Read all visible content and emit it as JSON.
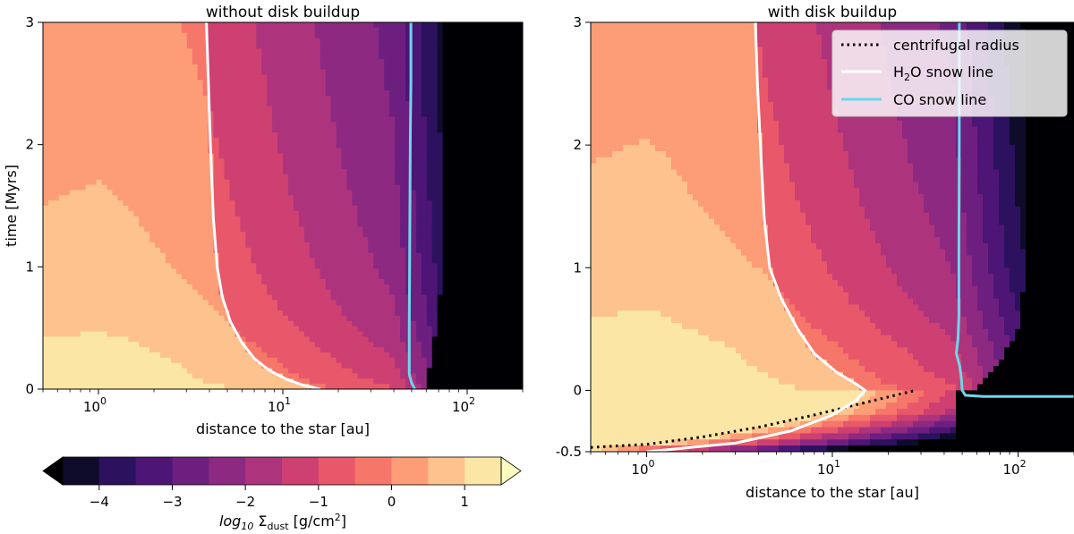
{
  "figure": {
    "colorbar": {
      "label_prefix": "log",
      "label_sub": "10",
      "label_symbol": " Σ",
      "label_sub2": "dust",
      "label_unit": " [g/cm",
      "label_sup": "2",
      "label_close": "]",
      "ticks": [
        {
          "value": -4,
          "label": "−4"
        },
        {
          "value": -3,
          "label": "−3"
        },
        {
          "value": -2,
          "label": "−2"
        },
        {
          "value": -1,
          "label": "−1"
        },
        {
          "value": 0,
          "label": "0"
        },
        {
          "value": 1,
          "label": "1"
        }
      ],
      "levels": [
        -4.5,
        -4,
        -3.5,
        -3,
        -2.5,
        -2,
        -1.5,
        -1,
        -0.5,
        0,
        0.5,
        1,
        1.5
      ],
      "colors": [
        "#000004",
        "#0f0c2b",
        "#2b115e",
        "#4d1575",
        "#6d1f80",
        "#8d2981",
        "#ad347c",
        "#cd4071",
        "#e8586a",
        "#f6766a",
        "#fc9d78",
        "#fdc28e",
        "#fce6a6",
        "#fcfdbf"
      ]
    },
    "legend": {
      "entries": [
        {
          "label": "centrifugal radius",
          "style": "dotted",
          "color": "#000000"
        },
        {
          "label_main": "H",
          "label_sub": "2",
          "label_rest": "O snow line",
          "style": "solid",
          "color": "#ffffff"
        },
        {
          "label": "CO snow line",
          "style": "solid",
          "color": "#6dd6ec"
        }
      ]
    }
  },
  "chart_data": [
    {
      "type": "contourf",
      "title": "without disk buildup",
      "xlabel": "distance to the star [au]",
      "ylabel": "time [Myrs]",
      "xscale": "log",
      "xlim": [
        0.5,
        200
      ],
      "ylim": [
        0,
        3
      ],
      "x_ticks": [
        {
          "value": 1,
          "base": "10",
          "exp": "0"
        },
        {
          "value": 10,
          "base": "10",
          "exp": "1"
        },
        {
          "value": 100,
          "base": "10",
          "exp": "2"
        }
      ],
      "y_ticks": [
        {
          "value": 0,
          "label": "0"
        },
        {
          "value": 1,
          "label": "1"
        },
        {
          "value": 2,
          "label": "2"
        },
        {
          "value": 3,
          "label": "3"
        }
      ],
      "series": [
        {
          "name": "H2O snow line",
          "color": "#ffffff",
          "points": [
            [
              16,
              0.0
            ],
            [
              13,
              0.03
            ],
            [
              10.5,
              0.08
            ],
            [
              8.5,
              0.15
            ],
            [
              7,
              0.25
            ],
            [
              6,
              0.38
            ],
            [
              5.2,
              0.55
            ],
            [
              4.7,
              0.75
            ],
            [
              4.4,
              1.0
            ],
            [
              4.2,
              1.4
            ],
            [
              4.05,
              2.0
            ],
            [
              3.95,
              2.5
            ],
            [
              3.85,
              3.0
            ]
          ]
        },
        {
          "name": "CO snow line",
          "color": "#6dd6ec",
          "points": [
            [
              52,
              0.0
            ],
            [
              50,
              0.05
            ],
            [
              48.5,
              0.12
            ],
            [
              48.5,
              0.5
            ],
            [
              48.8,
              1.2
            ],
            [
              49.2,
              2.1
            ],
            [
              49.5,
              2.5
            ],
            [
              49.5,
              3.0
            ]
          ]
        }
      ]
    },
    {
      "type": "contourf",
      "title": "with disk buildup",
      "xlabel": "distance to the star [au]",
      "ylabel": "",
      "xscale": "log",
      "xlim": [
        0.5,
        200
      ],
      "ylim": [
        -0.5,
        3
      ],
      "x_ticks": [
        {
          "value": 1,
          "base": "10",
          "exp": "0"
        },
        {
          "value": 10,
          "base": "10",
          "exp": "1"
        },
        {
          "value": 100,
          "base": "10",
          "exp": "2"
        }
      ],
      "y_ticks": [
        {
          "value": -0.5,
          "label": "-0.5"
        },
        {
          "value": 0,
          "label": "0"
        },
        {
          "value": 1,
          "label": "1"
        },
        {
          "value": 2,
          "label": "2"
        },
        {
          "value": 3,
          "label": "3"
        }
      ],
      "series": [
        {
          "name": "centrifugal radius",
          "color": "#000000",
          "style": "dotted",
          "points": [
            [
              0.5,
              -0.465
            ],
            [
              1.0,
              -0.44
            ],
            [
              2.0,
              -0.38
            ],
            [
              4.0,
              -0.3
            ],
            [
              8.0,
              -0.2
            ],
            [
              15.0,
              -0.1
            ],
            [
              28.0,
              0.0
            ]
          ]
        },
        {
          "name": "H2O snow line",
          "color": "#ffffff",
          "points": [
            [
              1.0,
              -0.5
            ],
            [
              3.0,
              -0.43
            ],
            [
              6.0,
              -0.33
            ],
            [
              10.0,
              -0.2
            ],
            [
              13.5,
              -0.08
            ],
            [
              15.0,
              0.0
            ],
            [
              13.5,
              0.05
            ],
            [
              10.5,
              0.15
            ],
            [
              8.0,
              0.3
            ],
            [
              6.5,
              0.5
            ],
            [
              5.3,
              0.75
            ],
            [
              4.6,
              1.0
            ],
            [
              4.3,
              1.4
            ],
            [
              4.1,
              2.0
            ],
            [
              3.95,
              2.5
            ],
            [
              3.85,
              3.0
            ]
          ]
        },
        {
          "name": "CO snow line",
          "color": "#6dd6ec",
          "points": [
            [
              200,
              -0.05
            ],
            [
              65,
              -0.05
            ],
            [
              52,
              -0.04
            ],
            [
              50,
              0.0
            ],
            [
              49.5,
              0.1
            ],
            [
              48.5,
              0.2
            ],
            [
              46.5,
              0.3
            ],
            [
              47.5,
              0.42
            ],
            [
              48,
              0.6
            ],
            [
              48,
              1.2
            ],
            [
              48.2,
              2.0
            ],
            [
              48.3,
              3.0
            ]
          ]
        }
      ]
    }
  ]
}
